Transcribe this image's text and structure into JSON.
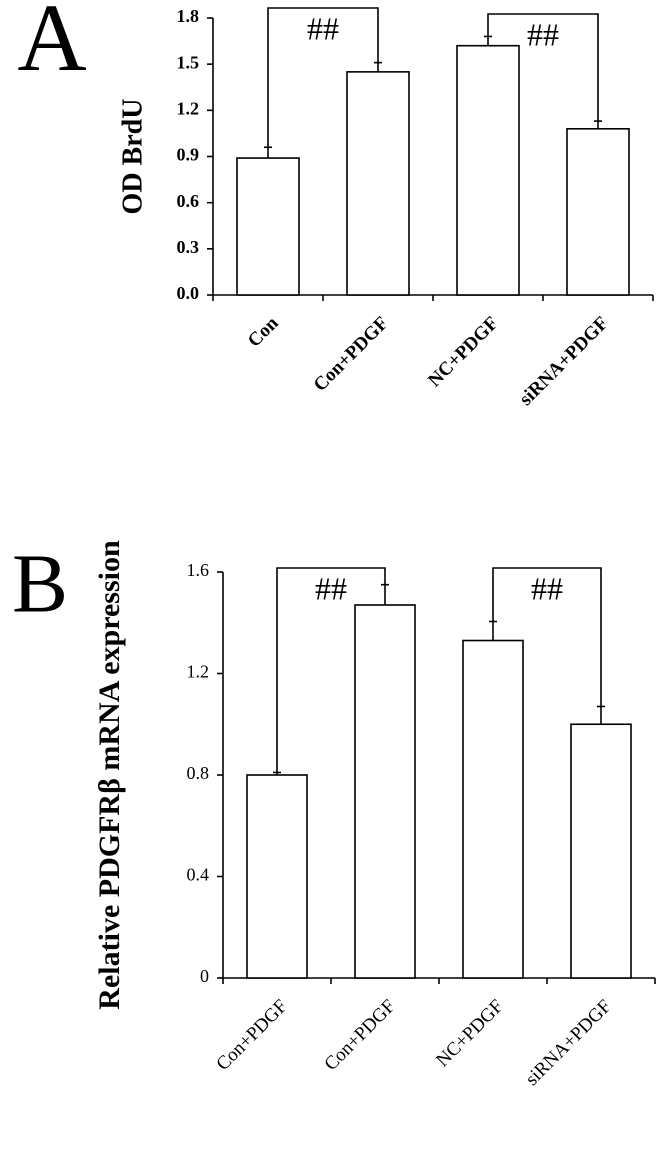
{
  "chart_data": [
    {
      "type": "bar",
      "panel": "A",
      "y_label": "OD BrdU",
      "categories": [
        "Con",
        "Con+PDGF",
        "NC+PDGF",
        "siRNA+PDGF"
      ],
      "values": [
        0.89,
        1.45,
        1.62,
        1.08
      ],
      "errors": [
        0.07,
        0.06,
        0.06,
        0.05
      ],
      "color": "#ffffff",
      "ylim": [
        0,
        1.8
      ],
      "yticks": [
        {
          "value": 0,
          "label": "0.0"
        },
        0.3,
        0.6,
        0.9,
        1.2,
        1.5,
        1.8
      ],
      "annotations": [
        "##",
        "##"
      ]
    },
    {
      "type": "bar",
      "panel": "B",
      "y_label": "Relative PDGFRβ mRNA expression",
      "categories": [
        "Con+PDGF",
        "Con+PDGF",
        "NC+PDGF",
        "siRNA+PDGF"
      ],
      "values": [
        0.8,
        1.47,
        1.33,
        1.0
      ],
      "errors": [
        0.01,
        0.08,
        0.075,
        0.07
      ],
      "color": "#ffffff",
      "ylim": [
        0,
        1.6
      ],
      "yticks": [
        0,
        0.4,
        0.8,
        1.2,
        1.6
      ],
      "annotations": [
        "##",
        "##"
      ]
    }
  ]
}
